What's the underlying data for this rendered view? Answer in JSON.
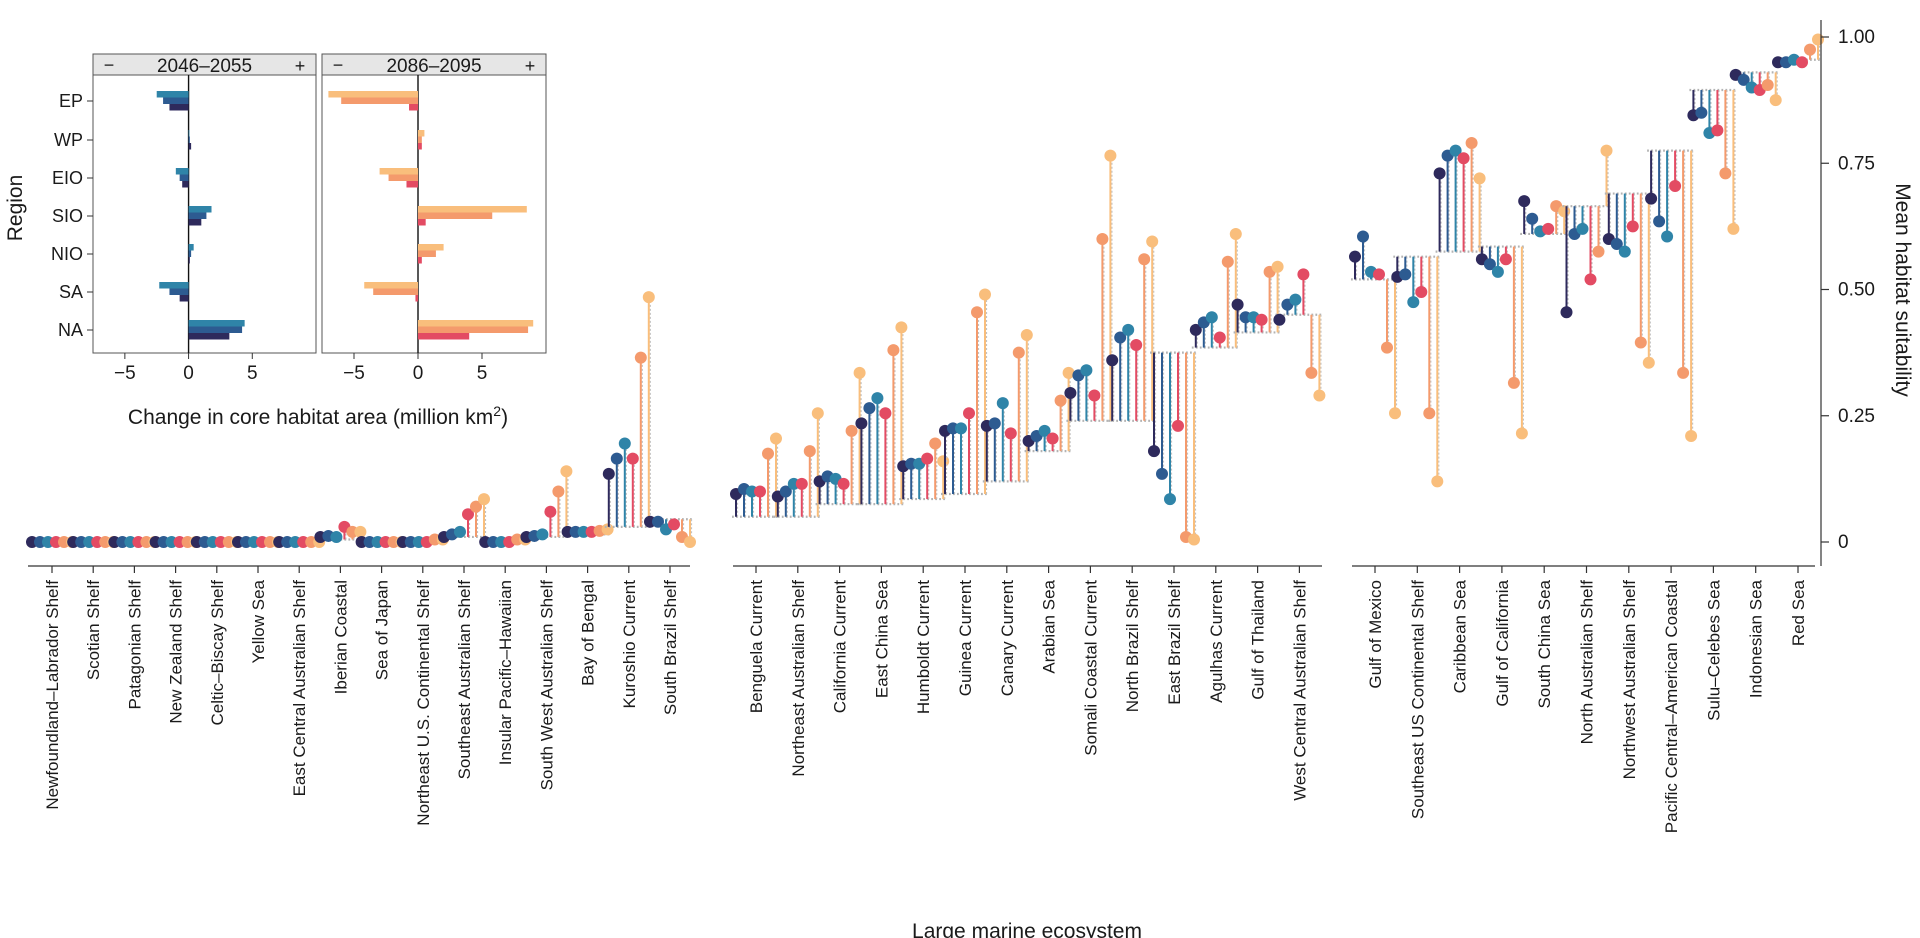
{
  "chart_data": {
    "type": "dot-lollipop",
    "xlabel": "Large marine ecosystem",
    "ylabel": "Mean habitat suitability",
    "ylim": [
      -0.02,
      1.02
    ],
    "yticks": [
      0,
      0.25,
      0.5,
      0.75,
      1.0
    ],
    "ytick_labels": [
      "0",
      "0.25",
      "0.50",
      "0.75",
      "1.00"
    ],
    "series_colors": [
      "#2e2a5c",
      "#2d5b91",
      "#2f84a8",
      "#e34b63",
      "#f49a6c",
      "#f9be7c"
    ],
    "groups": [
      {
        "name": "group-1",
        "ecosystems": [
          {
            "name": "Newfoundland–Labrador Shelf",
            "baseline": 0.0,
            "values": [
              0.0,
              0.0,
              0.0,
              0.0,
              0.0,
              0.0
            ]
          },
          {
            "name": "Scotian Shelf",
            "baseline": 0.0,
            "values": [
              0.0,
              0.0,
              0.0,
              0.0,
              0.0,
              0.0
            ]
          },
          {
            "name": "Patagonian Shelf",
            "baseline": 0.0,
            "values": [
              0.0,
              0.0,
              0.0,
              0.0,
              0.0,
              0.0
            ]
          },
          {
            "name": "New Zealand Shelf",
            "baseline": 0.0,
            "values": [
              0.0,
              0.0,
              0.0,
              0.0,
              0.0,
              0.0
            ]
          },
          {
            "name": "Celtic–Biscay Shelf",
            "baseline": 0.0,
            "values": [
              0.0,
              0.0,
              0.0,
              0.0,
              0.0,
              0.0
            ]
          },
          {
            "name": "Yellow Sea",
            "baseline": 0.0,
            "values": [
              0.0,
              0.0,
              0.0,
              0.0,
              0.0,
              0.0
            ]
          },
          {
            "name": "East Central Australian Shelf",
            "baseline": 0.0,
            "values": [
              0.0,
              0.0,
              0.0,
              0.0,
              0.0,
              0.0
            ]
          },
          {
            "name": "Iberian Coastal",
            "baseline": 0.005,
            "values": [
              0.01,
              0.012,
              0.01,
              0.03,
              0.02,
              0.02
            ]
          },
          {
            "name": "Sea of Japan",
            "baseline": 0.0,
            "values": [
              0.0,
              0.0,
              0.0,
              0.0,
              0.0,
              0.0
            ]
          },
          {
            "name": "Northeast U.S. Continental Shelf",
            "baseline": 0.0,
            "values": [
              0.0,
              0.0,
              0.0,
              0.0,
              0.005,
              0.005
            ]
          },
          {
            "name": "Southeast Australian Shelf",
            "baseline": 0.01,
            "values": [
              0.01,
              0.015,
              0.02,
              0.055,
              0.07,
              0.085
            ]
          },
          {
            "name": "Insular Pacific–Hawaiian",
            "baseline": 0.0,
            "values": [
              0.0,
              0.0,
              0.0,
              0.0,
              0.005,
              0.005
            ]
          },
          {
            "name": "South West Australian Shelf",
            "baseline": 0.01,
            "values": [
              0.01,
              0.012,
              0.015,
              0.06,
              0.1,
              0.14
            ]
          },
          {
            "name": "Bay of Bengal",
            "baseline": 0.015,
            "values": [
              0.02,
              0.02,
              0.02,
              0.02,
              0.022,
              0.025
            ]
          },
          {
            "name": "Kuroshio Current",
            "baseline": 0.03,
            "values": [
              0.135,
              0.165,
              0.195,
              0.165,
              0.365,
              0.485
            ]
          },
          {
            "name": "South Brazil Shelf",
            "baseline": 0.045,
            "values": [
              0.04,
              0.04,
              0.025,
              0.035,
              0.01,
              0.0
            ]
          }
        ]
      },
      {
        "name": "group-2",
        "ecosystems": [
          {
            "name": "Benguela Current",
            "baseline": 0.05,
            "values": [
              0.095,
              0.105,
              0.1,
              0.1,
              0.175,
              0.205
            ]
          },
          {
            "name": "Northeast Australian Shelf",
            "baseline": 0.05,
            "values": [
              0.09,
              0.1,
              0.115,
              0.115,
              0.18,
              0.255
            ]
          },
          {
            "name": "California Current",
            "baseline": 0.075,
            "values": [
              0.12,
              0.13,
              0.125,
              0.115,
              0.22,
              0.335
            ]
          },
          {
            "name": "East China Sea",
            "baseline": 0.075,
            "values": [
              0.235,
              0.265,
              0.285,
              0.255,
              0.38,
              0.425
            ]
          },
          {
            "name": "Humboldt Current",
            "baseline": 0.085,
            "values": [
              0.15,
              0.155,
              0.155,
              0.165,
              0.195,
              0.16
            ]
          },
          {
            "name": "Guinea Current",
            "baseline": 0.095,
            "values": [
              0.22,
              0.225,
              0.225,
              0.255,
              0.455,
              0.49
            ]
          },
          {
            "name": "Canary Current",
            "baseline": 0.12,
            "values": [
              0.23,
              0.235,
              0.275,
              0.215,
              0.375,
              0.41
            ]
          },
          {
            "name": "Arabian Sea",
            "baseline": 0.18,
            "values": [
              0.2,
              0.21,
              0.22,
              0.205,
              0.28,
              0.335
            ]
          },
          {
            "name": "Somali Coastal Current",
            "baseline": 0.24,
            "values": [
              0.295,
              0.33,
              0.34,
              0.29,
              0.6,
              0.765
            ]
          },
          {
            "name": "North Brazil Shelf",
            "baseline": 0.24,
            "values": [
              0.36,
              0.405,
              0.42,
              0.39,
              0.56,
              0.595
            ]
          },
          {
            "name": "East Brazil Shelf",
            "baseline": 0.375,
            "values": [
              0.18,
              0.135,
              0.085,
              0.23,
              0.01,
              0.005
            ]
          },
          {
            "name": "Agulhas Current",
            "baseline": 0.385,
            "values": [
              0.42,
              0.435,
              0.445,
              0.405,
              0.555,
              0.61
            ]
          },
          {
            "name": "Gulf of Thailand",
            "baseline": 0.415,
            "values": [
              0.47,
              0.445,
              0.445,
              0.44,
              0.535,
              0.545
            ]
          },
          {
            "name": "West Central Australian Shelf",
            "baseline": 0.45,
            "values": [
              0.44,
              0.47,
              0.48,
              0.53,
              0.335,
              0.29
            ]
          }
        ]
      },
      {
        "name": "group-3",
        "ecosystems": [
          {
            "name": "Gulf of Mexico",
            "baseline": 0.52,
            "values": [
              0.565,
              0.605,
              0.535,
              0.53,
              0.385,
              0.255
            ]
          },
          {
            "name": "Southeast US Continental Shelf",
            "baseline": 0.565,
            "values": [
              0.525,
              0.53,
              0.475,
              0.495,
              0.255,
              0.12
            ]
          },
          {
            "name": "Caribbean Sea",
            "baseline": 0.575,
            "values": [
              0.73,
              0.765,
              0.775,
              0.76,
              0.79,
              0.72
            ]
          },
          {
            "name": "Gulf of California",
            "baseline": 0.585,
            "values": [
              0.56,
              0.55,
              0.535,
              0.56,
              0.315,
              0.215
            ]
          },
          {
            "name": "South China Sea",
            "baseline": 0.61,
            "values": [
              0.675,
              0.64,
              0.615,
              0.62,
              0.665,
              0.655
            ]
          },
          {
            "name": "North Australian Shelf",
            "baseline": 0.665,
            "values": [
              0.455,
              0.61,
              0.62,
              0.52,
              0.575,
              0.775
            ]
          },
          {
            "name": "Northwest Australian Shelf",
            "baseline": 0.69,
            "values": [
              0.6,
              0.59,
              0.575,
              0.625,
              0.395,
              0.355
            ]
          },
          {
            "name": "Pacific Central–American Coastal",
            "baseline": 0.775,
            "values": [
              0.68,
              0.635,
              0.605,
              0.705,
              0.335,
              0.21
            ]
          },
          {
            "name": "Sulu–Celebes Sea",
            "baseline": 0.895,
            "values": [
              0.845,
              0.85,
              0.81,
              0.815,
              0.73,
              0.62
            ]
          },
          {
            "name": "Indonesian Sea",
            "baseline": 0.93,
            "values": [
              0.925,
              0.915,
              0.9,
              0.895,
              0.905,
              0.875
            ]
          },
          {
            "name": "Red Sea",
            "baseline": 0.955,
            "values": [
              0.95,
              0.95,
              0.955,
              0.95,
              0.975,
              0.995
            ]
          }
        ]
      }
    ],
    "inset": {
      "type": "bar",
      "ylabel": "Region",
      "xlabel": "Change in core habitat area (million km",
      "xlabel_sup": "2",
      "xlabel_close": ")",
      "regions": [
        "EP",
        "WP",
        "EIO",
        "SIO",
        "NIO",
        "SA",
        "NA"
      ],
      "xlim": [
        -7.5,
        10
      ],
      "xticks": [
        -5,
        0,
        5
      ],
      "xtick_labels": [
        "−5",
        "0",
        "5"
      ],
      "minus_symbol": "−",
      "plus_symbol": "+",
      "panels": [
        {
          "title": "2046–2055",
          "colors": [
            "#2f84a8",
            "#2d5b91",
            "#2e2a5c"
          ],
          "values": [
            [
              -2.5,
              -2.0,
              -1.5
            ],
            [
              0.05,
              0.1,
              0.2
            ],
            [
              -1.0,
              -0.7,
              -0.5
            ],
            [
              1.8,
              1.4,
              1.0
            ],
            [
              0.4,
              0.2,
              0.1
            ],
            [
              -2.3,
              -1.5,
              -0.7
            ],
            [
              4.4,
              4.2,
              3.2
            ]
          ]
        },
        {
          "title": "2086–2095",
          "colors": [
            "#f9be7c",
            "#f49a6c",
            "#e34b63"
          ],
          "values": [
            [
              -7.0,
              -6.0,
              -0.7
            ],
            [
              0.5,
              0.3,
              0.3
            ],
            [
              -3.0,
              -2.3,
              -0.9
            ],
            [
              8.5,
              5.8,
              0.6
            ],
            [
              2.0,
              1.4,
              0.3
            ],
            [
              -4.2,
              -3.5,
              -0.2
            ],
            [
              9.0,
              8.6,
              4.0
            ]
          ]
        }
      ]
    }
  }
}
